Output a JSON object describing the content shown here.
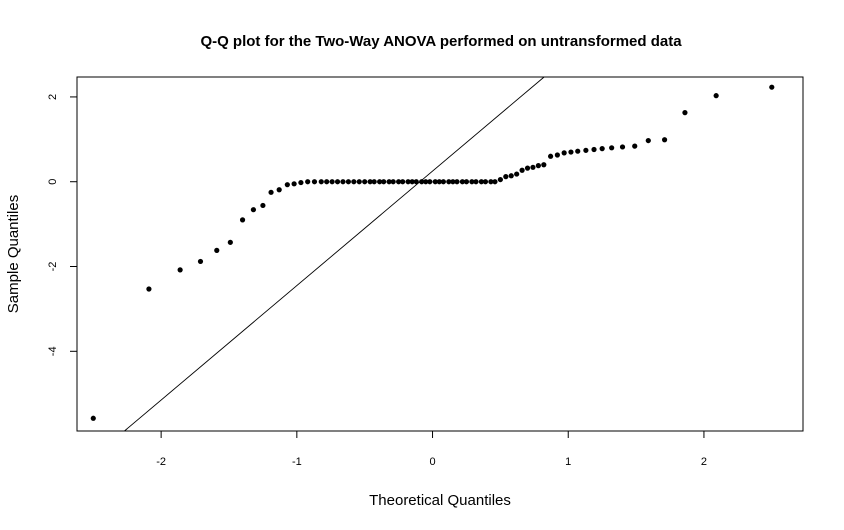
{
  "chart_data": {
    "type": "scatter",
    "title": "Q-Q plot for the Two-Way ANOVA performed on untransformed data",
    "xlabel": "Theoretical Quantiles",
    "ylabel": "Sample Quantiles",
    "xlim": [
      -2.62,
      2.73
    ],
    "ylim": [
      -5.88,
      2.47
    ],
    "x_ticks": [
      -2,
      -1,
      0,
      1,
      2
    ],
    "y_ticks": [
      -4,
      -2,
      0,
      2
    ],
    "grid": false,
    "legend": "none",
    "point_color": "#000000",
    "reference_line": {
      "intercept": 0.25,
      "slope": 2.7
    },
    "points": [
      [
        -2.5,
        -5.58
      ],
      [
        -2.09,
        -2.53
      ],
      [
        -1.86,
        -2.08
      ],
      [
        -1.71,
        -1.88
      ],
      [
        -1.59,
        -1.62
      ],
      [
        -1.49,
        -1.43
      ],
      [
        -1.4,
        -0.9
      ],
      [
        -1.32,
        -0.66
      ],
      [
        -1.25,
        -0.56
      ],
      [
        -1.19,
        -0.25
      ],
      [
        -1.13,
        -0.19
      ],
      [
        -1.07,
        -0.07
      ],
      [
        -1.02,
        -0.05
      ],
      [
        -0.97,
        -0.02
      ],
      [
        -0.92,
        0
      ],
      [
        -0.87,
        0
      ],
      [
        -0.82,
        0
      ],
      [
        -0.78,
        0
      ],
      [
        -0.74,
        0
      ],
      [
        -0.7,
        0
      ],
      [
        -0.66,
        0
      ],
      [
        -0.62,
        0
      ],
      [
        -0.58,
        0
      ],
      [
        -0.54,
        0
      ],
      [
        -0.5,
        0
      ],
      [
        -0.46,
        0
      ],
      [
        -0.43,
        0
      ],
      [
        -0.39,
        0
      ],
      [
        -0.36,
        0
      ],
      [
        -0.32,
        0
      ],
      [
        -0.29,
        0
      ],
      [
        -0.25,
        0
      ],
      [
        -0.22,
        0
      ],
      [
        -0.18,
        0
      ],
      [
        -0.15,
        0
      ],
      [
        -0.12,
        0
      ],
      [
        -0.08,
        0
      ],
      [
        -0.05,
        0
      ],
      [
        -0.02,
        0
      ],
      [
        0.02,
        0
      ],
      [
        0.05,
        0
      ],
      [
        0.08,
        0
      ],
      [
        0.12,
        0
      ],
      [
        0.15,
        0
      ],
      [
        0.18,
        0
      ],
      [
        0.22,
        0
      ],
      [
        0.25,
        0
      ],
      [
        0.29,
        0
      ],
      [
        0.32,
        0
      ],
      [
        0.36,
        0
      ],
      [
        0.39,
        0
      ],
      [
        0.43,
        0
      ],
      [
        0.46,
        0
      ],
      [
        0.5,
        0.05
      ],
      [
        0.54,
        0.12
      ],
      [
        0.58,
        0.14
      ],
      [
        0.62,
        0.18
      ],
      [
        0.66,
        0.27
      ],
      [
        0.7,
        0.32
      ],
      [
        0.74,
        0.34
      ],
      [
        0.78,
        0.38
      ],
      [
        0.82,
        0.4
      ],
      [
        0.87,
        0.6
      ],
      [
        0.92,
        0.63
      ],
      [
        0.97,
        0.68
      ],
      [
        1.02,
        0.7
      ],
      [
        1.07,
        0.72
      ],
      [
        1.13,
        0.74
      ],
      [
        1.19,
        0.76
      ],
      [
        1.25,
        0.78
      ],
      [
        1.32,
        0.8
      ],
      [
        1.4,
        0.82
      ],
      [
        1.49,
        0.84
      ],
      [
        1.59,
        0.97
      ],
      [
        1.71,
        0.99
      ],
      [
        1.86,
        1.63
      ],
      [
        2.09,
        2.03
      ],
      [
        2.5,
        2.23
      ]
    ]
  }
}
